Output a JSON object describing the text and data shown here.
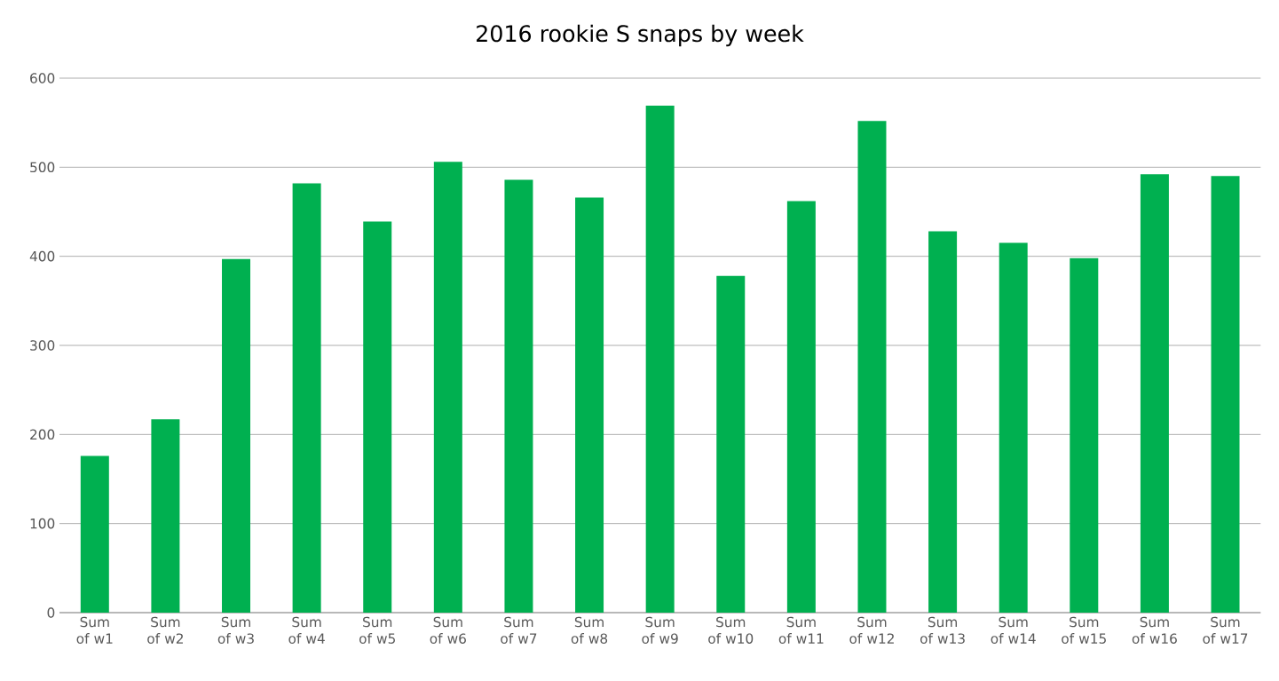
{
  "chart_data": {
    "type": "bar",
    "title": "2016 rookie S snaps by week",
    "categories": [
      "Sum of w1",
      "Sum of w2",
      "Sum of w3",
      "Sum of w4",
      "Sum of w5",
      "Sum of w6",
      "Sum of w7",
      "Sum of w8",
      "Sum of w9",
      "Sum of w10",
      "Sum of w11",
      "Sum of w12",
      "Sum of w13",
      "Sum of w14",
      "Sum of w15",
      "Sum of w16",
      "Sum of w17"
    ],
    "values": [
      176,
      217,
      397,
      482,
      439,
      506,
      486,
      466,
      569,
      378,
      462,
      552,
      428,
      415,
      398,
      492,
      490
    ],
    "color": "#00b050",
    "ylim": [
      0,
      600
    ],
    "yticks": [
      0,
      100,
      200,
      300,
      400,
      500,
      600
    ],
    "grid": "y"
  }
}
